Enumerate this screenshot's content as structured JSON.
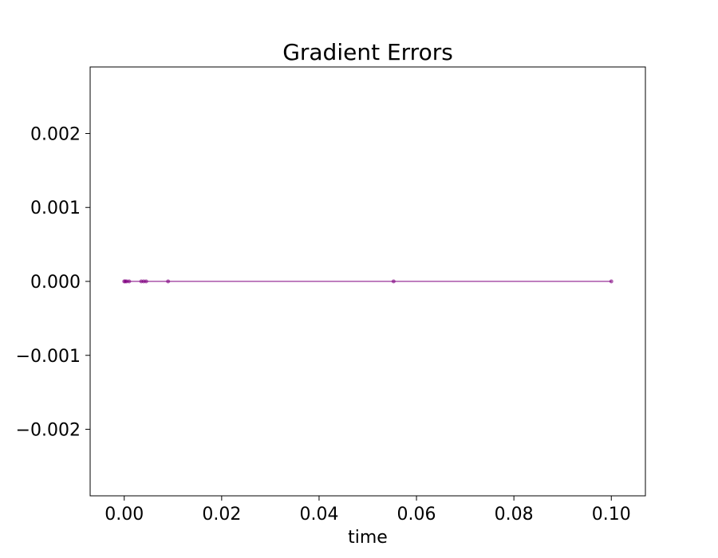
{
  "chart_data": {
    "type": "line",
    "title": "Gradient Errors",
    "xlabel": "time",
    "ylabel": "",
    "xlim": [
      -0.007,
      0.107
    ],
    "ylim": [
      -0.0029,
      0.0029
    ],
    "xticks": [
      0.0,
      0.02,
      0.04,
      0.06,
      0.08,
      0.1
    ],
    "xtick_labels": [
      "0.00",
      "0.02",
      "0.04",
      "0.06",
      "0.08",
      "0.10"
    ],
    "yticks": [
      0.002,
      0.001,
      0.0,
      -0.001,
      -0.002
    ],
    "ytick_labels": [
      "0.002",
      "0.001",
      "0.000",
      "−0.001",
      "−0.002"
    ],
    "grid": false,
    "series": [
      {
        "color": "#800080",
        "x": [
          0.0,
          0.0002,
          0.0005,
          0.001,
          0.0035,
          0.004,
          0.0045,
          0.009,
          0.0553,
          0.1
        ],
        "y": [
          0,
          0,
          0,
          0,
          0,
          0,
          0,
          0,
          0,
          0
        ]
      }
    ]
  }
}
